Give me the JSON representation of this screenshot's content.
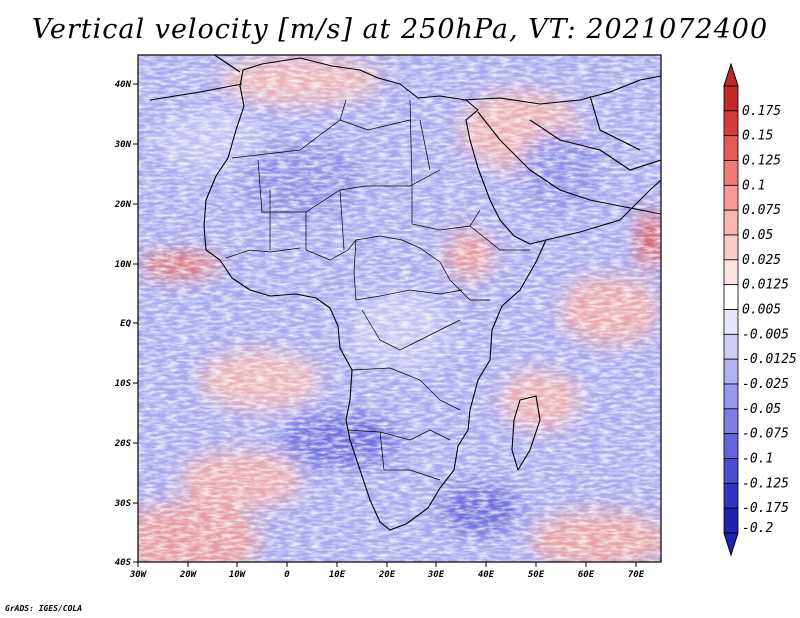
{
  "title": "Vertical velocity [m/s] at 250hPa, VT: 2021072400",
  "credit": "GrADS: IGES/COLA",
  "map": {
    "region": "Africa",
    "variable": "Vertical velocity",
    "units": "m/s",
    "level": "250hPa",
    "valid_time": "2021072400",
    "lon_range": [
      -30,
      75
    ],
    "lat_range": [
      -40,
      45
    ],
    "x_ticks": [
      "30W",
      "20W",
      "10W",
      "0",
      "10E",
      "20E",
      "30E",
      "40E",
      "50E",
      "60E",
      "70E"
    ],
    "y_ticks": [
      "40N",
      "30N",
      "20N",
      "10N",
      "EQ",
      "10S",
      "20S",
      "30S",
      "40S"
    ]
  },
  "colorbar": {
    "levels": [
      {
        "label": "0.175",
        "color": "#c0282a"
      },
      {
        "label": "0.15",
        "color": "#d53c3c"
      },
      {
        "label": "0.125",
        "color": "#e35a58"
      },
      {
        "label": "0.1",
        "color": "#ef7a76"
      },
      {
        "label": "0.075",
        "color": "#f59a96"
      },
      {
        "label": "0.05",
        "color": "#f8b5b1"
      },
      {
        "label": "0.025",
        "color": "#fbcdca"
      },
      {
        "label": "0.0125",
        "color": "#fde3e1"
      },
      {
        "label": "0.005",
        "color": "#ffffff"
      },
      {
        "label": "-0.005",
        "color": "#e6e6fb"
      },
      {
        "label": "-0.0125",
        "color": "#cdcdf6"
      },
      {
        "label": "-0.025",
        "color": "#b2b2f1"
      },
      {
        "label": "-0.05",
        "color": "#9898eb"
      },
      {
        "label": "-0.075",
        "color": "#7e7ee4"
      },
      {
        "label": "-0.1",
        "color": "#6666dc"
      },
      {
        "label": "-0.125",
        "color": "#4c4cd0"
      },
      {
        "label": "-0.175",
        "color": "#3434c2"
      },
      {
        "label": "-0.2",
        "color": "#2222b0"
      }
    ]
  }
}
